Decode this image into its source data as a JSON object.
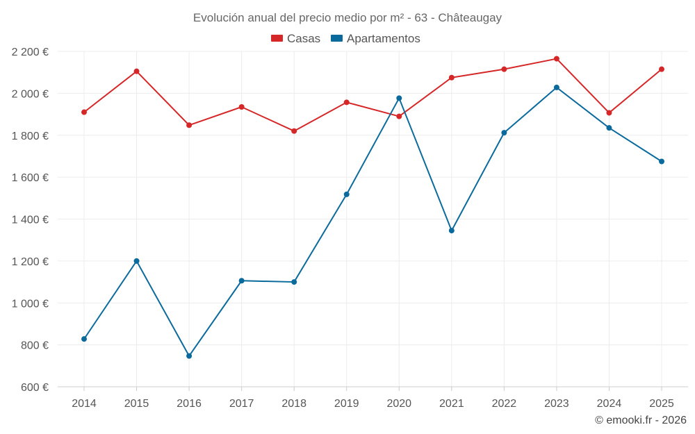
{
  "chart_data": {
    "type": "line",
    "title": "Evolución anual del precio medio por m² - 63 - Châteaugay",
    "categories": [
      "2014",
      "2015",
      "2016",
      "2017",
      "2018",
      "2019",
      "2020",
      "2021",
      "2022",
      "2023",
      "2024",
      "2025"
    ],
    "series": [
      {
        "name": "Casas",
        "color": "#d62728",
        "values": [
          1910,
          2105,
          1848,
          1935,
          1820,
          1957,
          1890,
          2075,
          2115,
          2165,
          1907,
          2115
        ]
      },
      {
        "name": "Apartamentos",
        "color": "#0b6a9c",
        "values": [
          828,
          1200,
          747,
          1106,
          1100,
          1518,
          1977,
          1345,
          1812,
          2028,
          1835,
          1675
        ]
      }
    ],
    "ylim": [
      600,
      2200
    ],
    "yticks": [
      600,
      800,
      1000,
      1200,
      1400,
      1600,
      1800,
      2000,
      2200
    ],
    "ytick_labels": [
      "600 €",
      "800 €",
      "1 000 €",
      "1 200 €",
      "1 400 €",
      "1 600 €",
      "1 800 €",
      "2 000 €",
      "2 200 €"
    ],
    "xlabel": "",
    "ylabel": "",
    "grid": true,
    "legend_position": "top-center"
  },
  "credit": "© emooki.fr - 2026"
}
